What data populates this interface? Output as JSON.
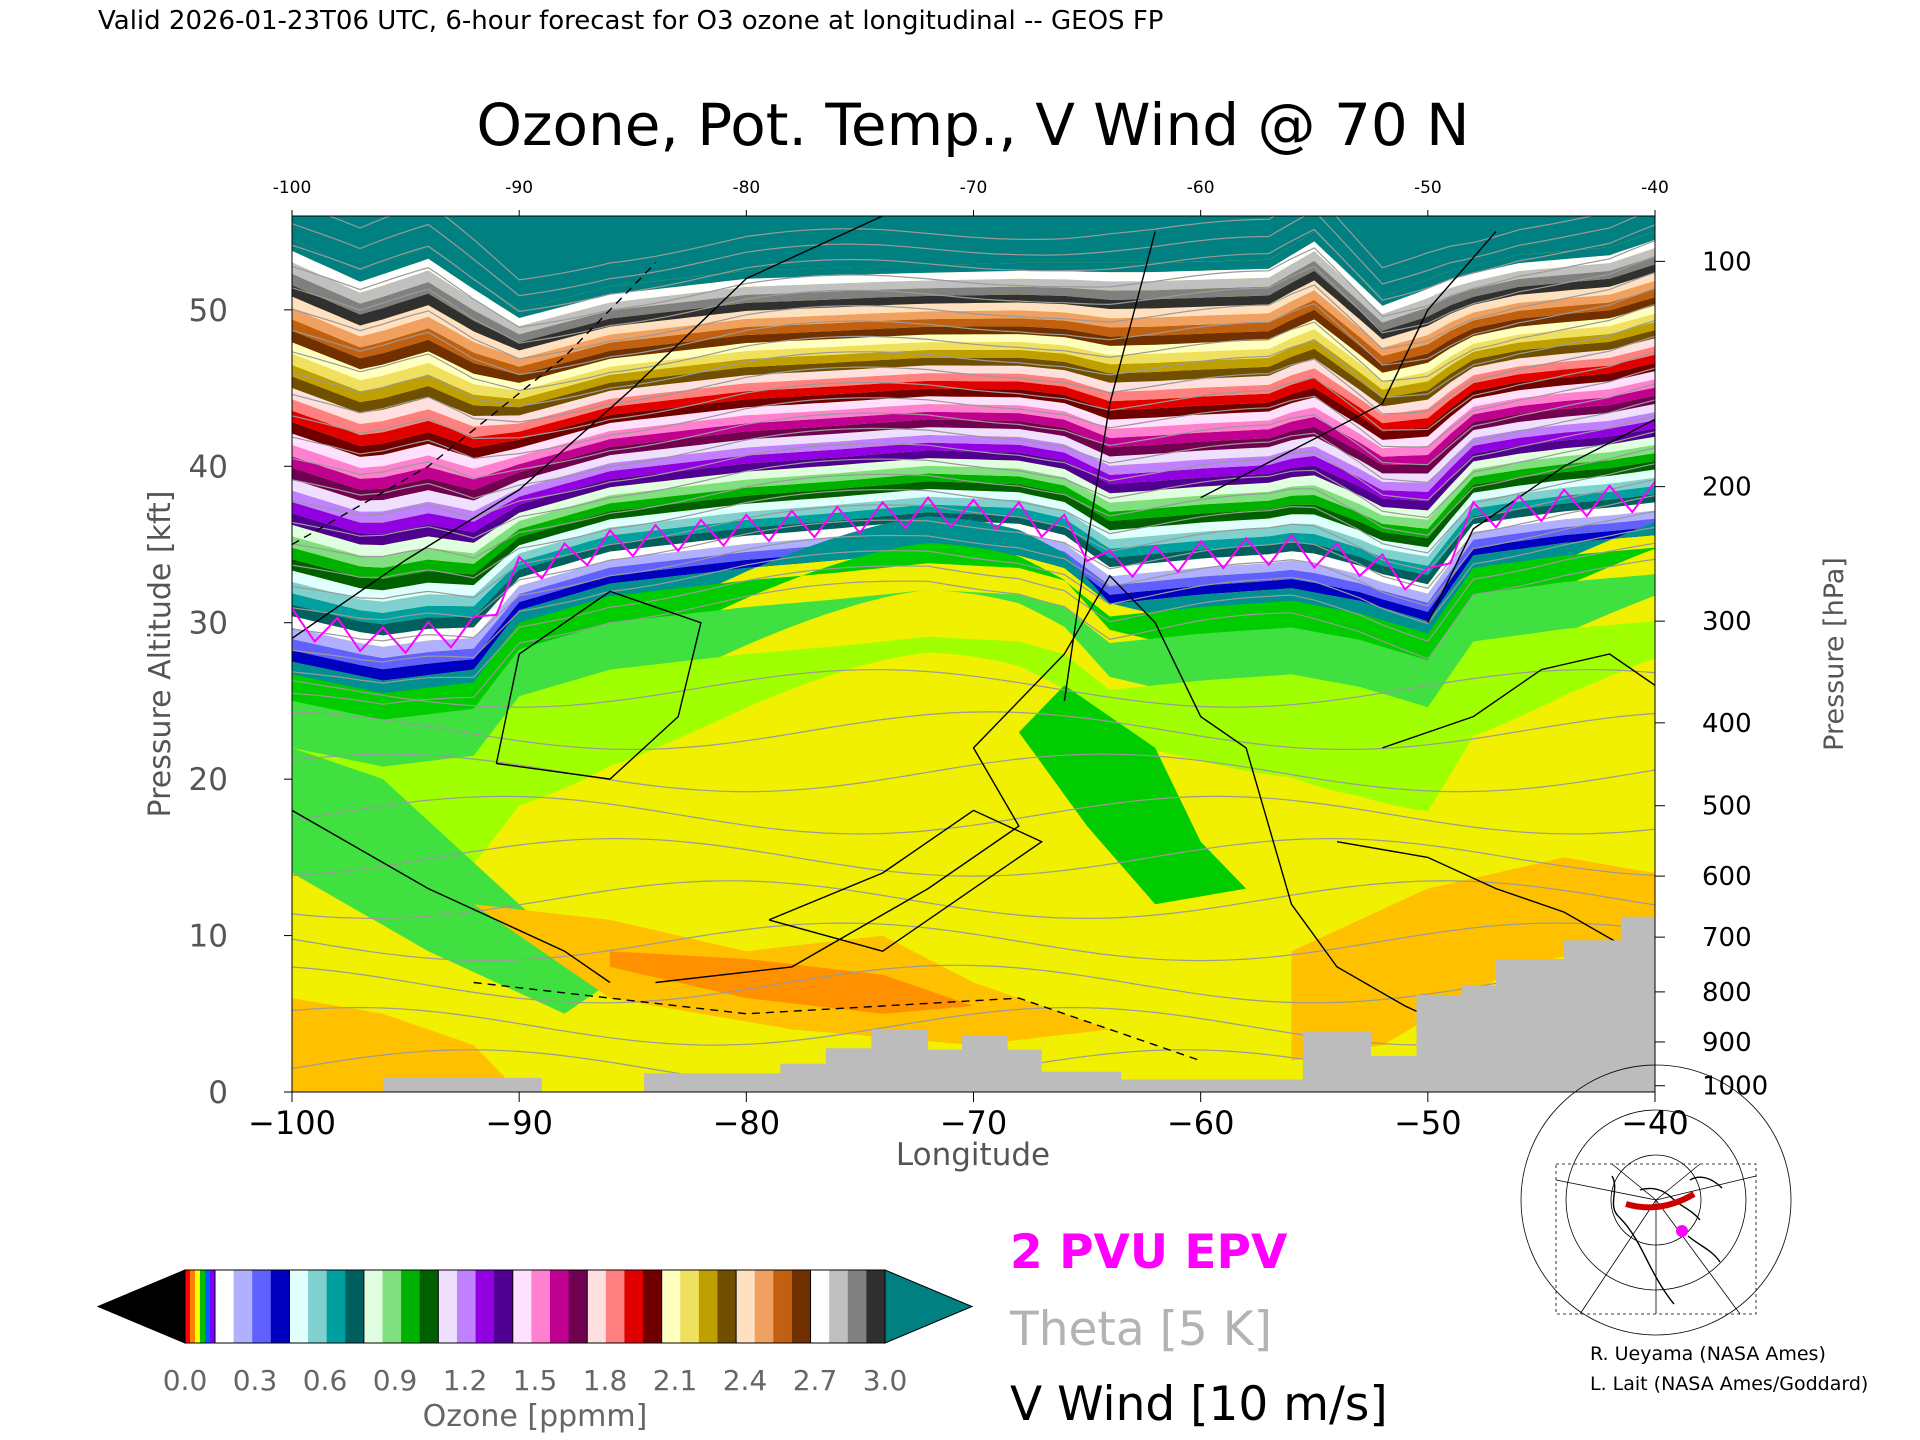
{
  "header": {
    "valid_line": "Valid 2026-01-23T06 UTC, 6-hour forecast for O3 ozone at longitudinal -- GEOS FP"
  },
  "chart_data": {
    "type": "heatmap",
    "title": "Ozone, Pot. Temp., V Wind @ 70 N",
    "xlabel": "Longitude",
    "ylabel_left": "Pressure Altitude [kft]",
    "ylabel_right": "Pressure [hPa]",
    "xlim": [
      -100,
      -40
    ],
    "ylim_kft": [
      0,
      56
    ],
    "x_ticks_bottom": [
      "−100",
      "−90",
      "−80",
      "−70",
      "−60",
      "−50",
      "−40"
    ],
    "x_ticks_top": [
      "-100",
      "-90",
      "-80",
      "-70",
      "-60",
      "-50",
      "-40"
    ],
    "y_ticks_left": [
      "0",
      "10",
      "20",
      "30",
      "40",
      "50"
    ],
    "pressure_ticks": [
      {
        "label": "100",
        "kft": 53.1
      },
      {
        "label": "200",
        "kft": 38.7
      },
      {
        "label": "300",
        "kft": 30.1
      },
      {
        "label": "400",
        "kft": 23.6
      },
      {
        "label": "500",
        "kft": 18.3
      },
      {
        "label": "600",
        "kft": 13.8
      },
      {
        "label": "700",
        "kft": 9.9
      },
      {
        "label": "800",
        "kft": 6.4
      },
      {
        "label": "900",
        "kft": 3.2
      },
      {
        "label": "1000",
        "kft": 0.4
      }
    ],
    "tropopause_kft": [
      [
        -100,
        27.5
      ],
      [
        -96,
        26.3
      ],
      [
        -92,
        27.0
      ],
      [
        -90,
        30.8
      ],
      [
        -86,
        32.5
      ],
      [
        -80,
        33.5
      ],
      [
        -76,
        34.0
      ],
      [
        -72,
        34.6
      ],
      [
        -68,
        34.3
      ],
      [
        -66,
        33.5
      ],
      [
        -64,
        31.2
      ],
      [
        -60,
        31.8
      ],
      [
        -56,
        32.2
      ],
      [
        -53,
        31.4
      ],
      [
        -50,
        30.1
      ],
      [
        -48,
        34.3
      ],
      [
        -44,
        35.1
      ],
      [
        -40,
        35.6
      ]
    ],
    "upper_boundary_kft": [
      [
        -100,
        54.5
      ],
      [
        -97,
        52.5
      ],
      [
        -94,
        54.0
      ],
      [
        -90,
        50.0
      ],
      [
        -86,
        51.5
      ],
      [
        -80,
        52.5
      ],
      [
        -74,
        52.8
      ],
      [
        -68,
        53.0
      ],
      [
        -62,
        53.0
      ],
      [
        -57,
        53.2
      ],
      [
        -55,
        55.0
      ],
      [
        -52,
        50.8
      ],
      [
        -49,
        52.5
      ],
      [
        -46,
        53.5
      ],
      [
        -42,
        54.0
      ],
      [
        -40,
        55.0
      ]
    ],
    "terrain_kft": [
      [
        -100,
        0
      ],
      [
        -96,
        0
      ],
      [
        -96,
        0.9
      ],
      [
        -89,
        0.9
      ],
      [
        -89,
        0
      ],
      [
        -84.5,
        0
      ],
      [
        -84.5,
        1.2
      ],
      [
        -78.5,
        1.2
      ],
      [
        -78.5,
        1.8
      ],
      [
        -76.5,
        1.8
      ],
      [
        -76.5,
        2.8
      ],
      [
        -74.5,
        2.8
      ],
      [
        -74.5,
        4.0
      ],
      [
        -72,
        4.0
      ],
      [
        -72,
        2.7
      ],
      [
        -70.5,
        2.7
      ],
      [
        -70.5,
        3.6
      ],
      [
        -68.5,
        3.6
      ],
      [
        -68.5,
        2.7
      ],
      [
        -67,
        2.7
      ],
      [
        -67,
        1.3
      ],
      [
        -63.5,
        1.3
      ],
      [
        -63.5,
        0.8
      ],
      [
        -55.5,
        0.8
      ],
      [
        -55.5,
        3.9
      ],
      [
        -52.5,
        3.9
      ],
      [
        -52.5,
        2.3
      ],
      [
        -50.5,
        2.3
      ],
      [
        -50.5,
        6.2
      ],
      [
        -48.5,
        6.2
      ],
      [
        -48.5,
        6.8
      ],
      [
        -47,
        6.8
      ],
      [
        -47,
        8.5
      ],
      [
        -44,
        8.5
      ],
      [
        -44,
        9.7
      ],
      [
        -41.5,
        9.7
      ],
      [
        -41.5,
        11.2
      ],
      [
        -40,
        11.2
      ],
      [
        -40,
        0
      ]
    ],
    "legend": [
      "2 PVU EPV",
      "Theta [5 K]",
      "V Wind [10 m/s]"
    ],
    "legend_colors": [
      "#ff00ff",
      "#b3b3b3",
      "#000000"
    ],
    "colorbar": {
      "label": "Ozone [ppmm]",
      "ticks": [
        "0.0",
        "0.3",
        "0.6",
        "0.9",
        "1.2",
        "1.5",
        "1.8",
        "2.1",
        "2.4",
        "2.7",
        "3.0"
      ],
      "range": [
        0,
        3.0
      ],
      "groups": [
        [
          "#ffffff",
          "#b0b0ff",
          "#6060ff",
          "#0000c0"
        ],
        [
          "#e0ffff",
          "#80d0d0",
          "#00a0a0",
          "#006060"
        ],
        [
          "#e0ffe0",
          "#80e080",
          "#00b000",
          "#006000"
        ],
        [
          "#f0e0ff",
          "#c080ff",
          "#9000e0",
          "#500090"
        ],
        [
          "#ffe0ff",
          "#ff80d0",
          "#c00090",
          "#700050"
        ],
        [
          "#ffe0e0",
          "#ff8080",
          "#e00000",
          "#700000"
        ],
        [
          "#ffffc0",
          "#f0e060",
          "#c0a000",
          "#705000"
        ],
        [
          "#ffe0c0",
          "#f0a060",
          "#c06010",
          "#703000"
        ],
        [
          "#ffffff",
          "#c0c0c0",
          "#808080",
          "#303030"
        ]
      ],
      "over_color": "#008080",
      "under_color": "#000000"
    }
  },
  "credits": [
    "R. Ueyama (NASA Ames)",
    "L. Lait (NASA Ames/Goddard)"
  ]
}
